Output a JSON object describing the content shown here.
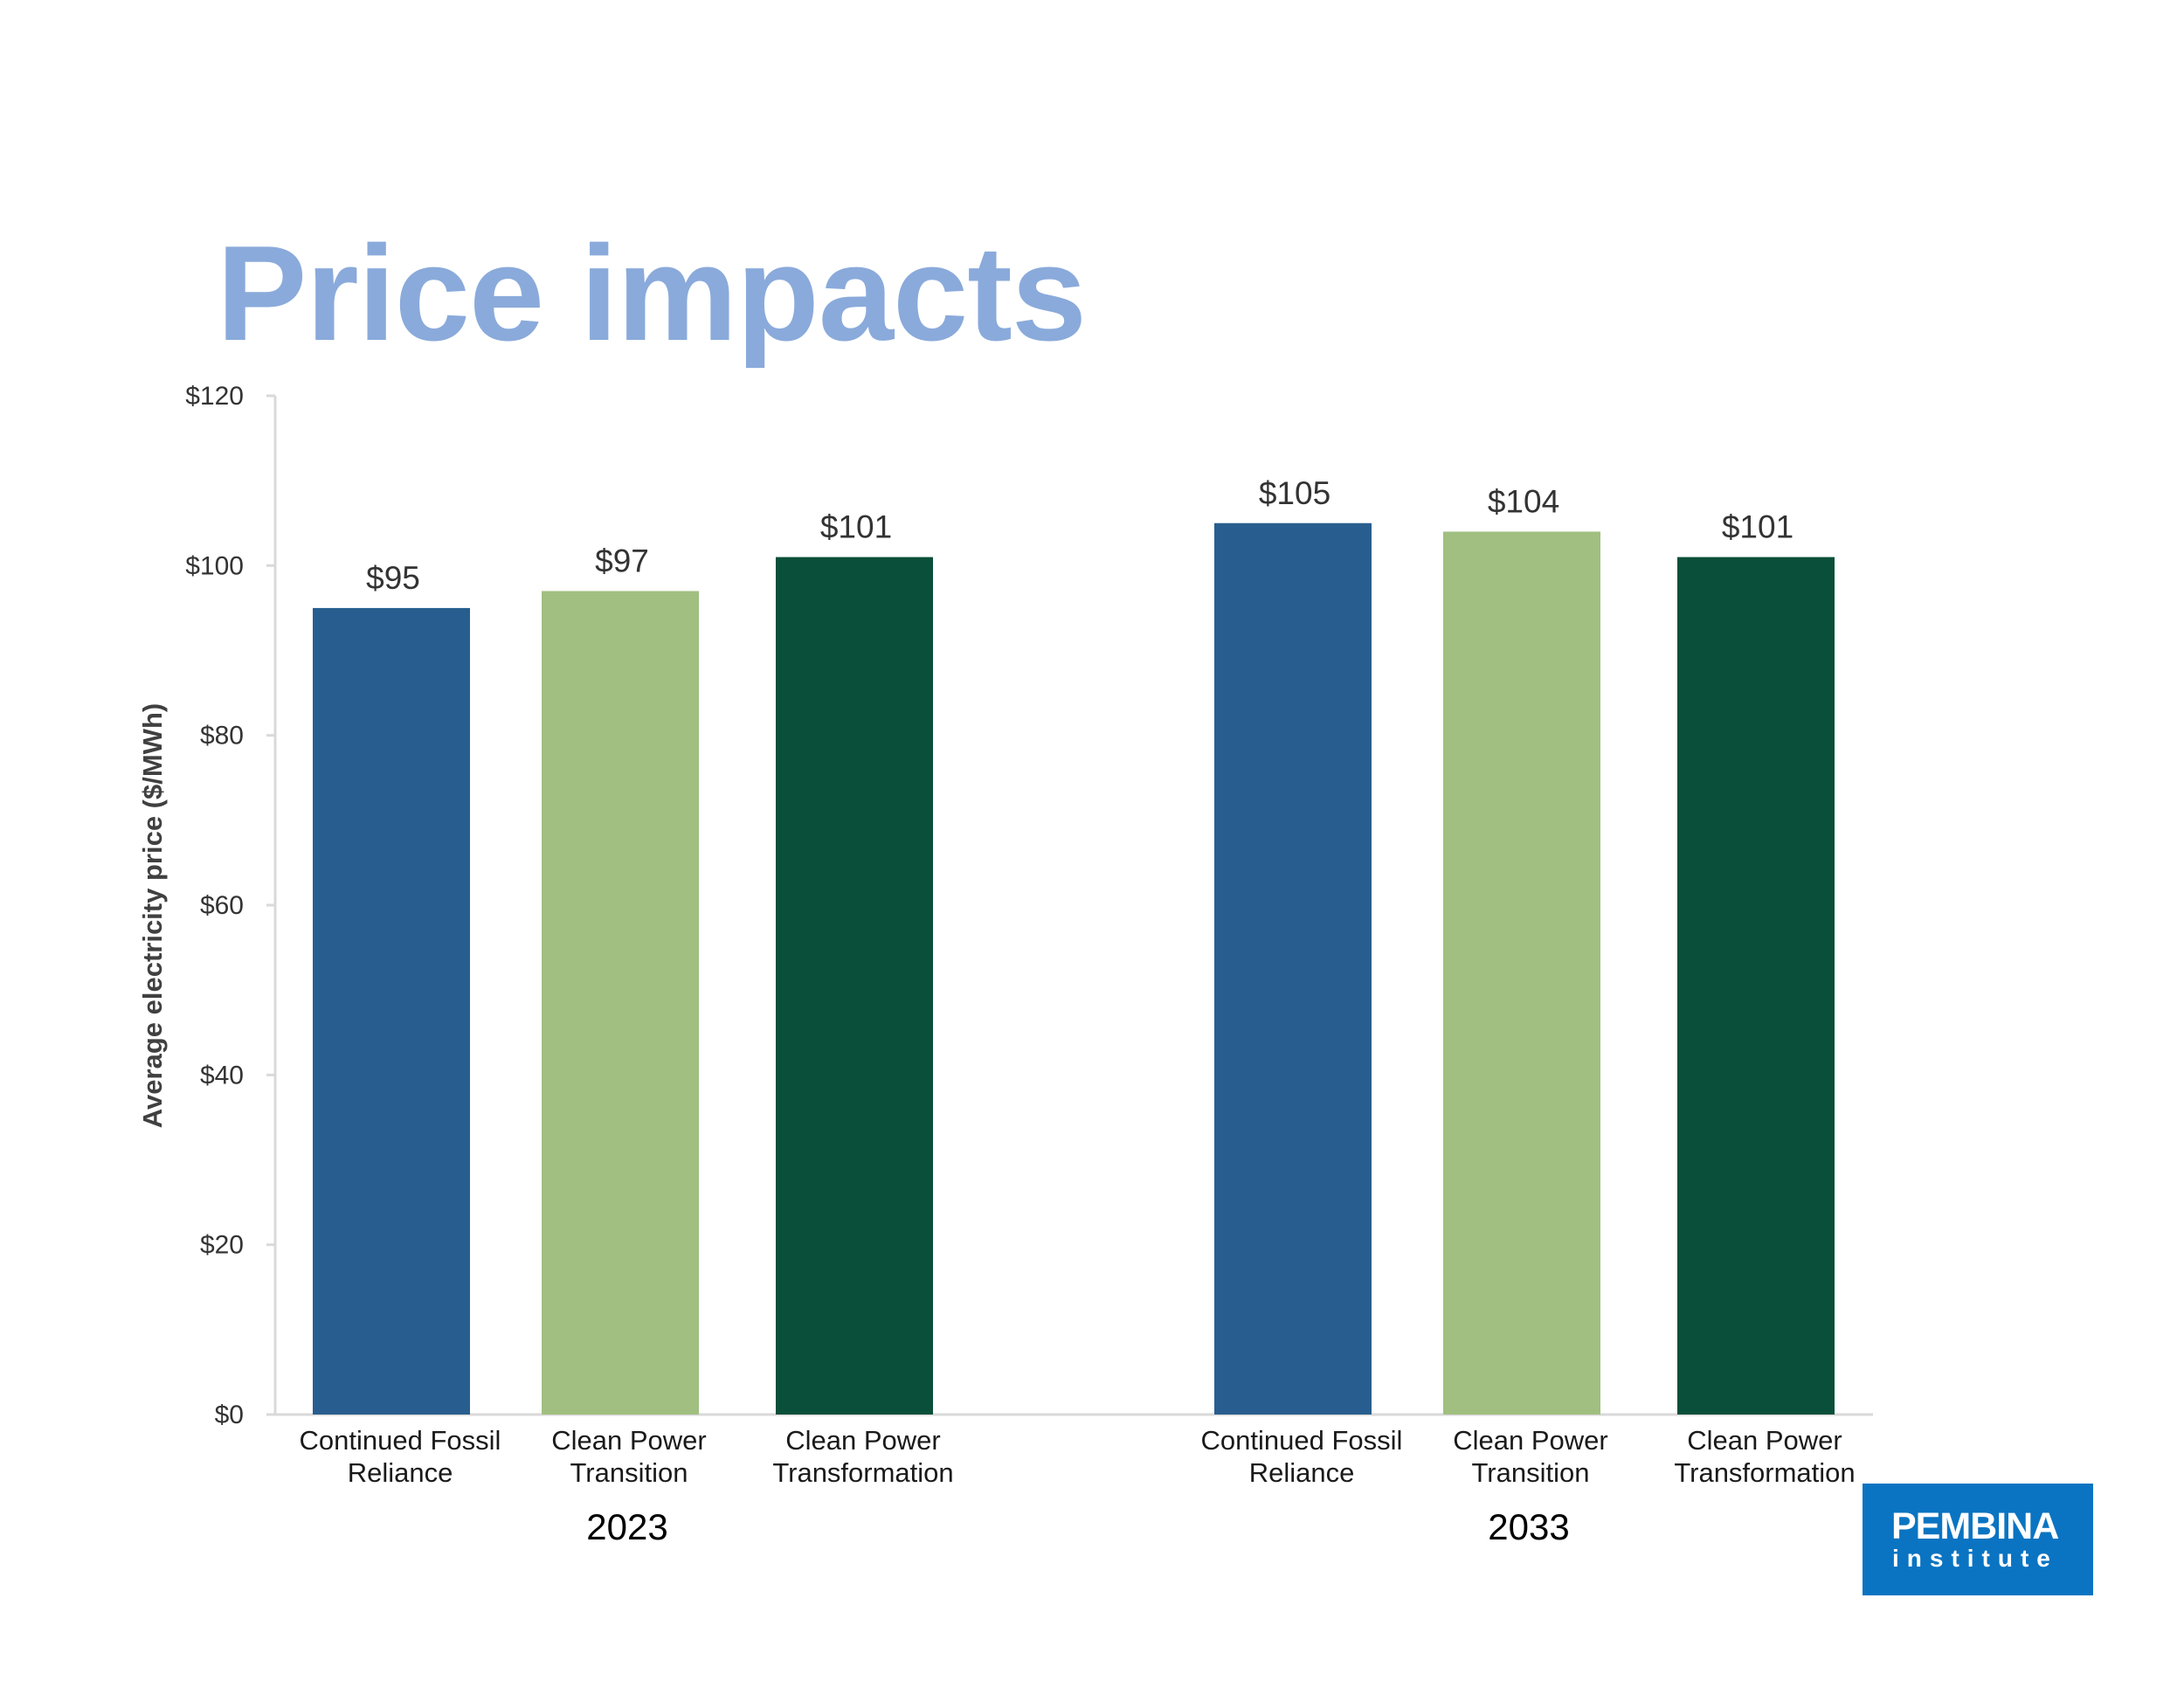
{
  "page": {
    "title": "Price impacts"
  },
  "logo": {
    "name": "PEMBINA",
    "sub": "institute",
    "color": "#0a74c2"
  },
  "chart_data": {
    "type": "bar",
    "ylabel": "Average electricity price ($/MWh)",
    "ylim": [
      0,
      120
    ],
    "yticks": [
      "$0",
      "$20",
      "$40",
      "$60",
      "$80",
      "$100",
      "$120"
    ],
    "grid": false,
    "legend": "none",
    "groups": [
      {
        "label": "2023",
        "bars": [
          {
            "category": "Continued Fossil Reliance",
            "lines": [
              "Continued Fossil",
              "Reliance"
            ],
            "value": 95,
            "value_label": "$95",
            "color": "#285e8f"
          },
          {
            "category": "Clean Power Transition",
            "lines": [
              "Clean Power",
              "Transition"
            ],
            "value": 97,
            "value_label": "$97",
            "color": "#a1bf80"
          },
          {
            "category": "Clean Power Transformation",
            "lines": [
              "Clean Power",
              "Transformation"
            ],
            "value": 101,
            "value_label": "$101",
            "color": "#0a4f39"
          }
        ]
      },
      {
        "label": "2033",
        "bars": [
          {
            "category": "Continued Fossil Reliance",
            "lines": [
              "Continued Fossil",
              "Reliance"
            ],
            "value": 105,
            "value_label": "$105",
            "color": "#285e8f"
          },
          {
            "category": "Clean Power Transition",
            "lines": [
              "Clean Power",
              "Transition"
            ],
            "value": 104,
            "value_label": "$104",
            "color": "#a1bf80"
          },
          {
            "category": "Clean Power Transformation",
            "lines": [
              "Clean Power",
              "Transformation"
            ],
            "value": 101,
            "value_label": "$101",
            "color": "#0a4f39"
          }
        ]
      }
    ]
  }
}
